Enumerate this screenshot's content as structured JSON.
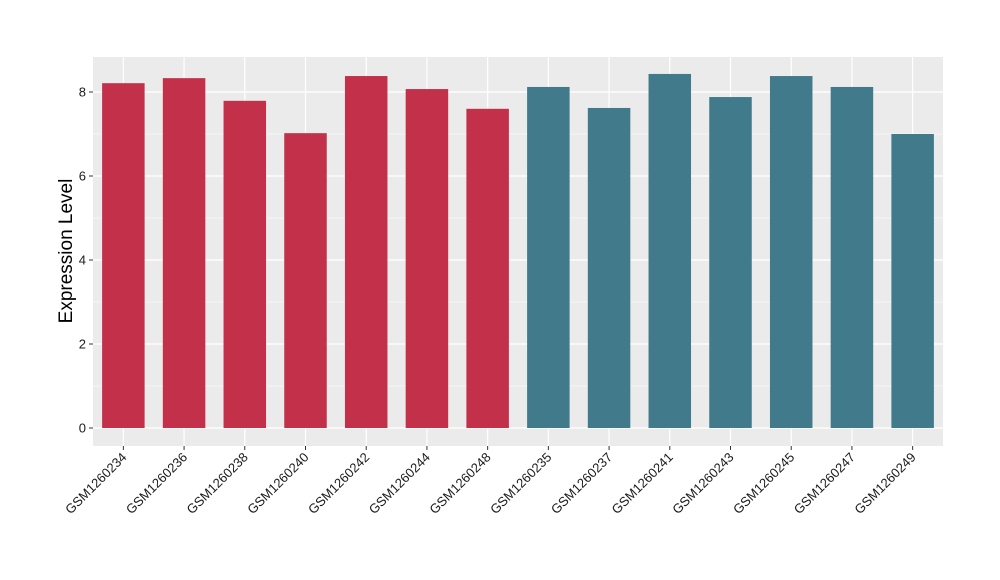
{
  "chart_data": {
    "type": "bar",
    "title": "",
    "xlabel": "",
    "ylabel": "Expression Level",
    "ylim": [
      0,
      8.9
    ],
    "yticks": [
      0,
      2,
      4,
      6,
      8
    ],
    "grid": true,
    "categories": [
      "GSM1260234",
      "GSM1260236",
      "GSM1260238",
      "GSM1260240",
      "GSM1260242",
      "GSM1260244",
      "GSM1260248",
      "GSM1260235",
      "GSM1260237",
      "GSM1260241",
      "GSM1260243",
      "GSM1260245",
      "GSM1260247",
      "GSM1260249"
    ],
    "values": [
      8.21,
      8.33,
      7.79,
      7.02,
      8.38,
      8.07,
      7.6,
      8.12,
      7.62,
      8.43,
      7.88,
      8.38,
      8.12,
      7.0
    ],
    "group_colors": [
      "#C3304A",
      "#C3304A",
      "#C3304A",
      "#C3304A",
      "#C3304A",
      "#C3304A",
      "#C3304A",
      "#417A8A",
      "#417A8A",
      "#417A8A",
      "#417A8A",
      "#417A8A",
      "#417A8A",
      "#417A8A"
    ],
    "panel_background": "#EBEBEB"
  }
}
